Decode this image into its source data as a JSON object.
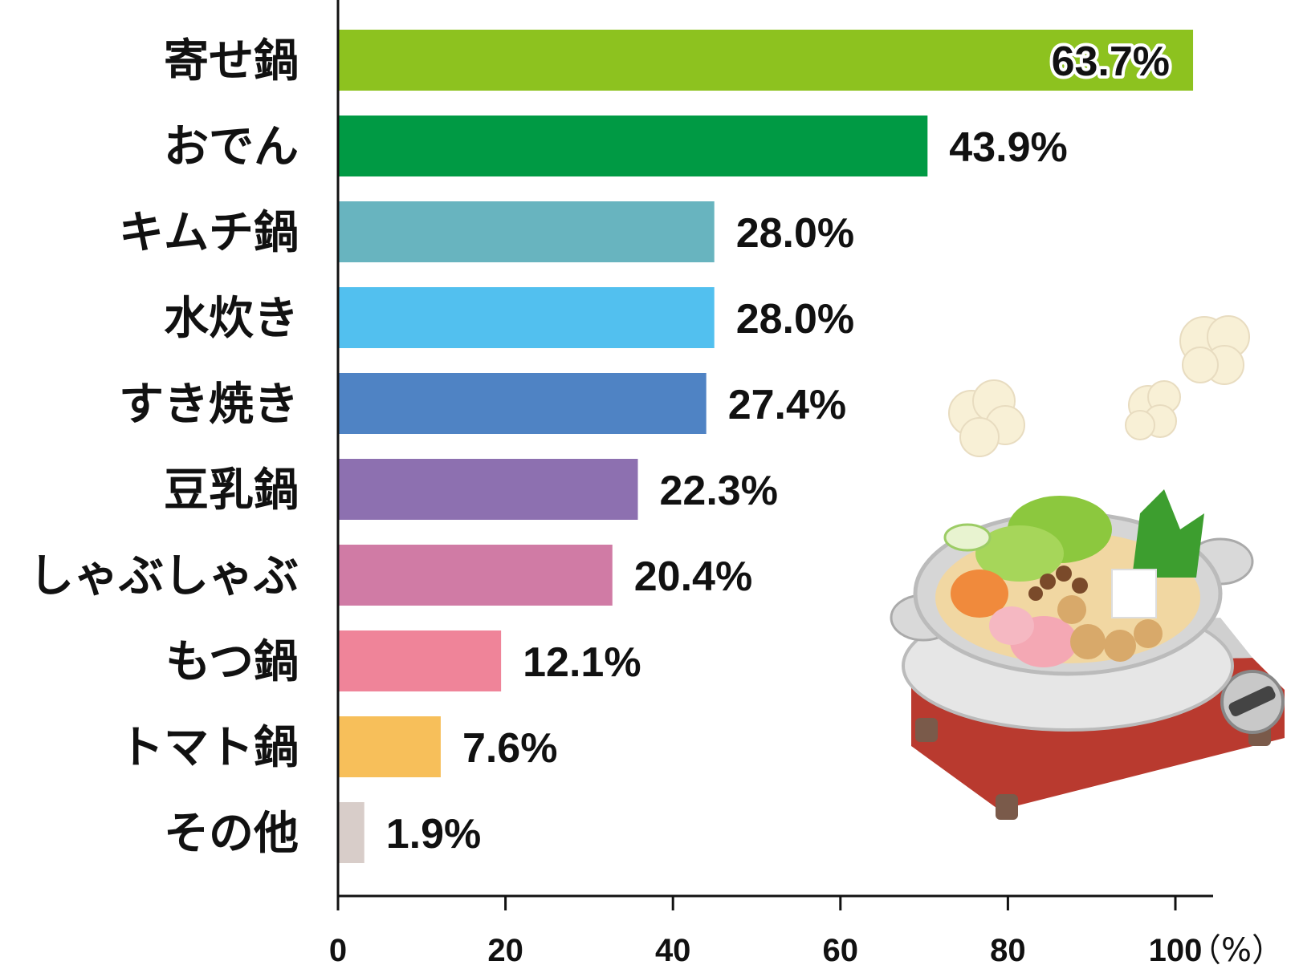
{
  "chart_data": {
    "type": "bar",
    "orientation": "horizontal",
    "categories": [
      "寄せ鍋",
      "おでん",
      "キムチ鍋",
      "水炊き",
      "すき焼き",
      "豆乳鍋",
      "しゃぶしゃぶ",
      "もつ鍋",
      "トマト鍋",
      "その他"
    ],
    "values": [
      63.7,
      43.9,
      28.0,
      28.0,
      27.4,
      22.3,
      20.4,
      12.1,
      7.6,
      1.9
    ],
    "value_labels": [
      "63.7%",
      "43.9%",
      "28.0%",
      "28.0%",
      "27.4%",
      "22.3%",
      "20.4%",
      "12.1%",
      "7.6%",
      "1.9%"
    ],
    "colors": [
      "#8dc21f",
      "#009a44",
      "#68b4bf",
      "#52c0ef",
      "#4f83c4",
      "#8d70b0",
      "#d07ba5",
      "#ef8499",
      "#f7bf5a",
      "#d8cdc9"
    ],
    "xticks": [
      0,
      20,
      40,
      60,
      80,
      100
    ],
    "xlim": [
      0,
      100
    ],
    "x_unit": "（%）",
    "grid": false
  },
  "illustration": {
    "icon": "nabe-hotpot-icon"
  }
}
